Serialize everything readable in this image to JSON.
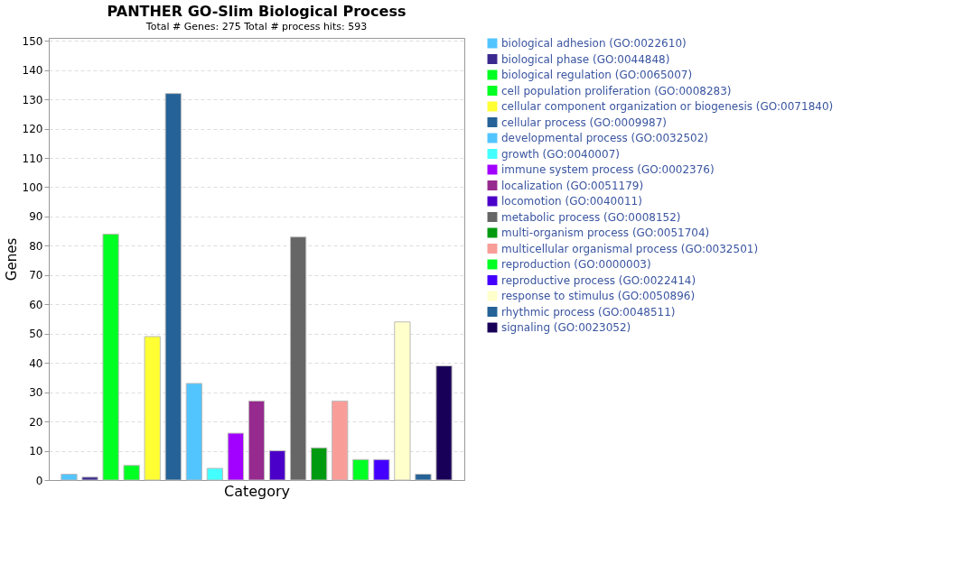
{
  "chart_data": {
    "type": "bar",
    "title": "PANTHER GO-Slim Biological Process",
    "subtitle": "Total # Genes: 275    Total # process hits: 593",
    "xlabel": "Category",
    "ylabel": "Genes",
    "categories": [
      null,
      null,
      null,
      null,
      null,
      null,
      null,
      null,
      null,
      null,
      null,
      null,
      null,
      null,
      null,
      null,
      null,
      null,
      null
    ],
    "series": [
      {
        "name": "biological adhesion (GO:0022610)",
        "color": "#52c5ff",
        "values": [
          2,
          null,
          null,
          null,
          null,
          null,
          null,
          null,
          null,
          null,
          null,
          null,
          null,
          null,
          null,
          null,
          null,
          null,
          null
        ]
      },
      {
        "name": "biological phase (GO:0044848)",
        "color": "#3a2a8f",
        "values": [
          null,
          1,
          null,
          null,
          null,
          null,
          null,
          null,
          null,
          null,
          null,
          null,
          null,
          null,
          null,
          null,
          null,
          null,
          null
        ]
      },
      {
        "name": "biological regulation (GO:0065007)",
        "color": "#00ff22",
        "values": [
          null,
          null,
          84,
          null,
          null,
          null,
          null,
          null,
          null,
          null,
          null,
          null,
          null,
          null,
          null,
          null,
          null,
          null,
          null
        ]
      },
      {
        "name": "cell population proliferation (GO:0008283)",
        "color": "#00ff22",
        "values": [
          null,
          null,
          null,
          5,
          null,
          null,
          null,
          null,
          null,
          null,
          null,
          null,
          null,
          null,
          null,
          null,
          null,
          null,
          null
        ]
      },
      {
        "name": "cellular component organization or biogenesis (GO:0071840)",
        "color": "#ffff33",
        "values": [
          null,
          null,
          null,
          null,
          49,
          null,
          null,
          null,
          null,
          null,
          null,
          null,
          null,
          null,
          null,
          null,
          null,
          null,
          null
        ]
      },
      {
        "name": "cellular process (GO:0009987)",
        "color": "#246297",
        "values": [
          null,
          null,
          null,
          null,
          null,
          132,
          null,
          null,
          null,
          null,
          null,
          null,
          null,
          null,
          null,
          null,
          null,
          null,
          null
        ]
      },
      {
        "name": "developmental process (GO:0032502)",
        "color": "#52c5ff",
        "values": [
          null,
          null,
          null,
          null,
          null,
          null,
          33,
          null,
          null,
          null,
          null,
          null,
          null,
          null,
          null,
          null,
          null,
          null,
          null
        ]
      },
      {
        "name": "growth (GO:0040007)",
        "color": "#44ffff",
        "values": [
          null,
          null,
          null,
          null,
          null,
          null,
          null,
          4,
          null,
          null,
          null,
          null,
          null,
          null,
          null,
          null,
          null,
          null,
          null
        ]
      },
      {
        "name": "immune system process (GO:0002376)",
        "color": "#a200ff",
        "values": [
          null,
          null,
          null,
          null,
          null,
          null,
          null,
          null,
          16,
          null,
          null,
          null,
          null,
          null,
          null,
          null,
          null,
          null,
          null
        ]
      },
      {
        "name": "localization (GO:0051179)",
        "color": "#962a8f",
        "values": [
          null,
          null,
          null,
          null,
          null,
          null,
          null,
          null,
          null,
          27,
          null,
          null,
          null,
          null,
          null,
          null,
          null,
          null,
          null
        ]
      },
      {
        "name": "locomotion (GO:0040011)",
        "color": "#4a00c8",
        "values": [
          null,
          null,
          null,
          null,
          null,
          null,
          null,
          null,
          null,
          null,
          10,
          null,
          null,
          null,
          null,
          null,
          null,
          null,
          null
        ]
      },
      {
        "name": "metabolic process (GO:0008152)",
        "color": "#666666",
        "values": [
          null,
          null,
          null,
          null,
          null,
          null,
          null,
          null,
          null,
          null,
          null,
          83,
          null,
          null,
          null,
          null,
          null,
          null,
          null
        ]
      },
      {
        "name": "multi-organism process (GO:0051704)",
        "color": "#009a10",
        "values": [
          null,
          null,
          null,
          null,
          null,
          null,
          null,
          null,
          null,
          null,
          null,
          null,
          11,
          null,
          null,
          null,
          null,
          null,
          null
        ]
      },
      {
        "name": "multicellular organismal process (GO:0032501)",
        "color": "#f99d99",
        "values": [
          null,
          null,
          null,
          null,
          null,
          null,
          null,
          null,
          null,
          null,
          null,
          null,
          null,
          27,
          null,
          null,
          null,
          null,
          null
        ]
      },
      {
        "name": "reproduction (GO:0000003)",
        "color": "#00ff22",
        "values": [
          null,
          null,
          null,
          null,
          null,
          null,
          null,
          null,
          null,
          null,
          null,
          null,
          null,
          null,
          7,
          null,
          null,
          null,
          null
        ]
      },
      {
        "name": "reproductive process (GO:0022414)",
        "color": "#4400ff",
        "values": [
          null,
          null,
          null,
          null,
          null,
          null,
          null,
          null,
          null,
          null,
          null,
          null,
          null,
          null,
          null,
          7,
          null,
          null,
          null
        ]
      },
      {
        "name": "response to stimulus (GO:0050896)",
        "color": "#ffffcc",
        "values": [
          null,
          null,
          null,
          null,
          null,
          null,
          null,
          null,
          null,
          null,
          null,
          null,
          null,
          null,
          null,
          null,
          54,
          null,
          null
        ]
      },
      {
        "name": "rhythmic process (GO:0048511)",
        "color": "#246297",
        "values": [
          null,
          null,
          null,
          null,
          null,
          null,
          null,
          null,
          null,
          null,
          null,
          null,
          null,
          null,
          null,
          null,
          null,
          2,
          null
        ]
      },
      {
        "name": "signaling (GO:0023052)",
        "color": "#180058",
        "values": [
          null,
          null,
          null,
          null,
          null,
          null,
          null,
          null,
          null,
          null,
          null,
          null,
          null,
          null,
          null,
          null,
          null,
          null,
          39
        ]
      }
    ],
    "ylim": [
      0,
      151
    ],
    "yticks": [
      0,
      10,
      20,
      30,
      40,
      50,
      60,
      70,
      80,
      90,
      100,
      110,
      120,
      130,
      140,
      150
    ],
    "grid": "y",
    "legend": "right",
    "tick_labels": "y"
  }
}
